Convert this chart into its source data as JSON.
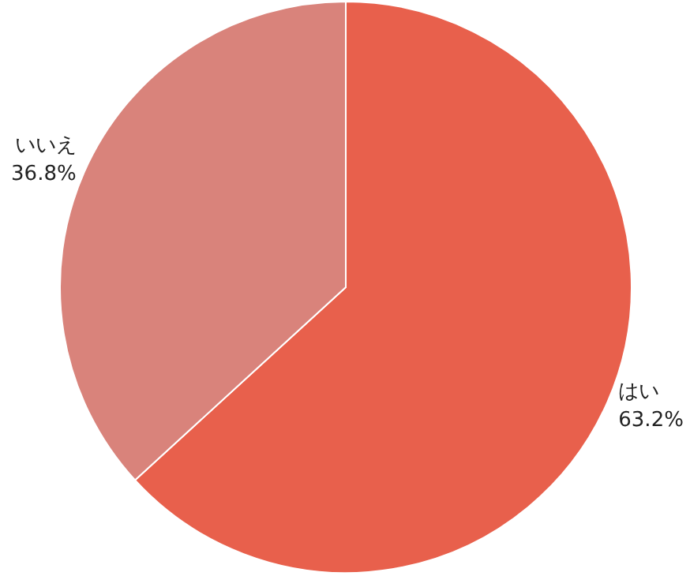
{
  "chart_data": {
    "type": "pie",
    "categories": [
      "はい",
      "いいえ"
    ],
    "values": [
      63.2,
      36.8
    ],
    "colors": [
      "#e8604c",
      "#d9837b"
    ],
    "value_labels": [
      "63.2%",
      "36.8%"
    ]
  }
}
